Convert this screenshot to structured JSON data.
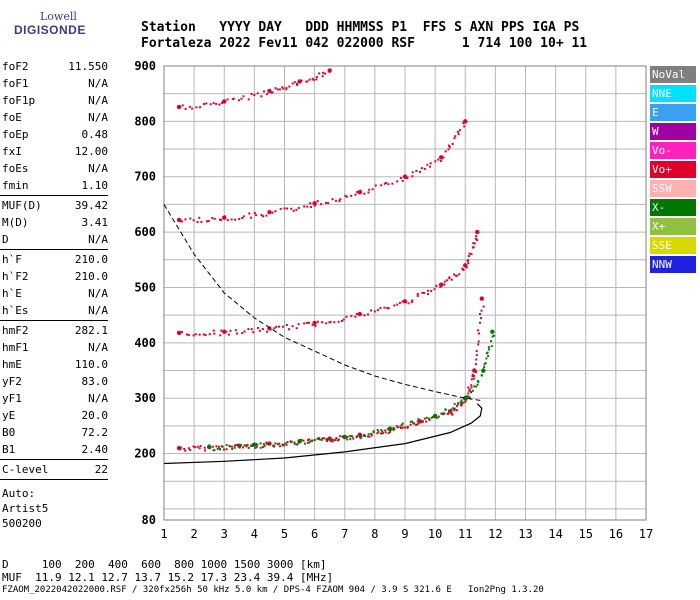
{
  "logo": {
    "line1": "Lowell",
    "line2": "DIGISONDE"
  },
  "header": {
    "line1": "Station   YYYY DAY   DDD HHMMSS P1  FFS S AXN PPS IGA PS",
    "line2": "Fortaleza 2022 Fev11 042 022000 RSF      1 714 100 10+ 11"
  },
  "params": [
    {
      "name": "foF2",
      "value": "11.550"
    },
    {
      "name": "foF1",
      "value": "N/A"
    },
    {
      "name": "foF1p",
      "value": "N/A"
    },
    {
      "name": "foE",
      "value": "N/A"
    },
    {
      "name": "foEp",
      "value": "0.48"
    },
    {
      "name": "fxI",
      "value": "12.00"
    },
    {
      "name": "foEs",
      "value": "N/A"
    },
    {
      "name": "fmin",
      "value": "1.10"
    },
    {
      "sep": true
    },
    {
      "name": "MUF(D)",
      "value": "39.42"
    },
    {
      "name": "M(D)",
      "value": "3.41"
    },
    {
      "name": "D",
      "value": "N/A"
    },
    {
      "sep": true
    },
    {
      "name": "h`F",
      "value": "210.0"
    },
    {
      "name": "h`F2",
      "value": "210.0"
    },
    {
      "name": "h`E",
      "value": "N/A"
    },
    {
      "name": "h`Es",
      "value": "N/A"
    },
    {
      "sep": true
    },
    {
      "name": "hmF2",
      "value": "282.1"
    },
    {
      "name": "hmF1",
      "value": "N/A"
    },
    {
      "name": "hmE",
      "value": "110.0"
    },
    {
      "name": "yF2",
      "value": "83.0"
    },
    {
      "name": "yF1",
      "value": "N/A"
    },
    {
      "name": "yE",
      "value": "20.0"
    },
    {
      "name": "B0",
      "value": "72.2"
    },
    {
      "name": "B1",
      "value": "2.40"
    },
    {
      "sep": true
    },
    {
      "name": "C-level",
      "value": "22"
    },
    {
      "sep": true
    }
  ],
  "auto": {
    "line1": "Auto:",
    "line2": "Artist5",
    "line3": "500200"
  },
  "legend": [
    {
      "label": "NoVal",
      "color": "#7f7f7f"
    },
    {
      "label": "NNE",
      "color": "#00e0ff"
    },
    {
      "label": "E",
      "color": "#3aa0f0"
    },
    {
      "label": "W",
      "color": "#a000a0"
    },
    {
      "label": "Vo-",
      "color": "#ff20c0"
    },
    {
      "label": "Vo+",
      "color": "#e0002a"
    },
    {
      "label": "SSW",
      "color": "#ffb0b0"
    },
    {
      "label": "X-",
      "color": "#007800"
    },
    {
      "label": "X+",
      "color": "#90c040"
    },
    {
      "label": "SSE",
      "color": "#d8d800"
    },
    {
      "label": "NNW",
      "color": "#2020e0"
    }
  ],
  "footer": {
    "line1": "D     100  200  400  600  800 1000 1500 3000 [km]",
    "line2": "MUF  11.9 12.1 12.7 13.7 15.2 17.3 23.4 39.4 [MHz]",
    "line3": "FZAOM_2022042022000.RSF / 320fx256h 50 kHz 5.0 km / DPS-4 FZAOM 904 / 3.9 S 321.6 E   Ion2Png 1.3.20"
  },
  "chart_data": {
    "type": "scatter",
    "title": "",
    "xlabel": "",
    "ylabel": "",
    "xlim": [
      1,
      17
    ],
    "ylim": [
      80,
      900
    ],
    "x_ticks": [
      "1",
      "2",
      "3",
      "4",
      "5",
      "6",
      "7",
      "8",
      "9",
      "10",
      "11",
      "12",
      "13",
      "14",
      "15",
      "16",
      "17"
    ],
    "y_ticks": [
      "80",
      "200",
      "300",
      "400",
      "500",
      "600",
      "700",
      "800",
      "900"
    ],
    "grid": true,
    "legend_position": "right",
    "traces": [
      {
        "name": "O-trace F2 (1st hop)",
        "color": "#e0002a",
        "x": [
          1.5,
          2.5,
          3.5,
          4.5,
          5.5,
          6.5,
          7.5,
          8.5,
          9.5,
          10.5,
          11.0,
          11.3,
          11.55
        ],
        "y": [
          210,
          212,
          214,
          218,
          222,
          227,
          234,
          244,
          258,
          276,
          300,
          350,
          480
        ]
      },
      {
        "name": "X-trace F2",
        "color": "#007800",
        "x": [
          2.5,
          4.0,
          5.5,
          7.0,
          8.5,
          10.0,
          11.0,
          11.6,
          11.9
        ],
        "y": [
          212,
          216,
          222,
          230,
          245,
          268,
          300,
          350,
          420
        ]
      },
      {
        "name": "O-trace F2 (2nd hop)",
        "color": "#e0002a",
        "x": [
          1.5,
          3.0,
          4.5,
          6.0,
          7.5,
          9.0,
          10.2,
          11.0,
          11.4
        ],
        "y": [
          418,
          420,
          426,
          436,
          452,
          475,
          505,
          540,
          600
        ]
      },
      {
        "name": "O-trace F2 (3rd hop)",
        "color": "#e0002a",
        "x": [
          1.5,
          3.0,
          4.5,
          6.0,
          7.5,
          9.0,
          10.2,
          11.0
        ],
        "y": [
          622,
          626,
          636,
          652,
          672,
          700,
          735,
          800
        ]
      },
      {
        "name": "O-trace F2 (4th hop)",
        "color": "#e0002a",
        "x": [
          1.5,
          3.0,
          4.5,
          5.5,
          6.5
        ],
        "y": [
          826,
          836,
          855,
          872,
          892
        ]
      }
    ],
    "profile_curve": {
      "x": [
        1.0,
        3.0,
        5.0,
        7.0,
        9.0,
        10.5,
        11.2,
        11.5,
        11.55,
        11.4
      ],
      "y": [
        182,
        186,
        192,
        203,
        218,
        238,
        255,
        268,
        282,
        290
      ]
    },
    "muf_curve": {
      "x": [
        1.0,
        2.0,
        3.0,
        4.0,
        5.0,
        6.0,
        7.0,
        8.0,
        9.0,
        10.0,
        11.0,
        11.5
      ],
      "y": [
        650,
        560,
        490,
        445,
        410,
        385,
        360,
        340,
        325,
        312,
        300,
        296
      ]
    }
  }
}
